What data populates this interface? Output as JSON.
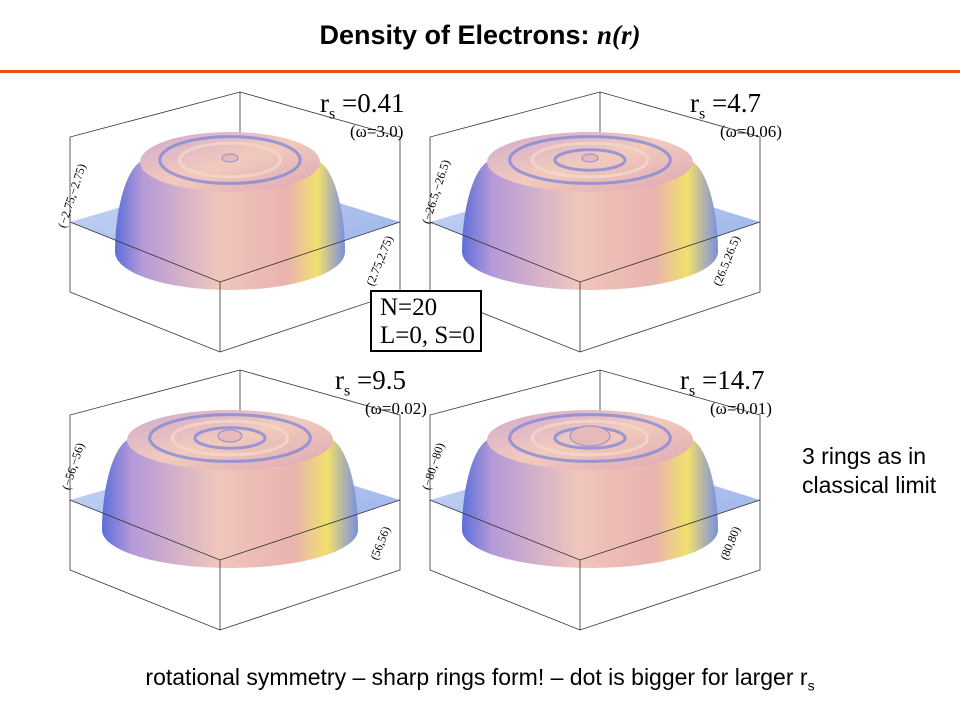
{
  "slide": {
    "title_main": "Density of Electrons: ",
    "title_symbol": "n(r)",
    "accent_color": "#e8501e",
    "side_note": "3 rings as in classical limit",
    "caption_main": "rotational symmetry – sharp rings form! – dot is bigger for larger r",
    "caption_sub": "s"
  },
  "config_box": {
    "line1": "N=20",
    "line2": "L=0, S=0"
  },
  "panels": [
    {
      "rs_label": "r",
      "rs_sub": "s",
      "rs_value": " =0.41",
      "omega": "(ω=3.0)",
      "corner_low": "(−2.75,−2.75)",
      "corner_high": "(2.75,2.75)",
      "rings": 2,
      "center_peak": "small"
    },
    {
      "rs_label": "r",
      "rs_sub": "s",
      "rs_value": " =4.7",
      "omega": "(ω=0.06)",
      "corner_low": "(−26.5,−26.5)",
      "corner_high": "(26.5,26.5)",
      "rings": 3,
      "center_peak": "small"
    },
    {
      "rs_label": "r",
      "rs_sub": "s",
      "rs_value": " =9.5",
      "omega": "(ω=0.02)",
      "corner_low": "(−56,−56)",
      "corner_high": "(56,56)",
      "rings": 3,
      "center_peak": "medium"
    },
    {
      "rs_label": "r",
      "rs_sub": "s",
      "rs_value": " =14.7",
      "omega": "(ω=0.01)",
      "corner_low": "(−80,−80)",
      "corner_high": "(80,80)",
      "rings": 3,
      "center_peak": "large"
    }
  ],
  "colors": {
    "floor": "#aabfee",
    "surface_light": "#f3c9bd",
    "surface_mid": "#e6a7b0",
    "surface_edge": "#6b78d6",
    "highlight_yellow": "#f2e46a"
  }
}
